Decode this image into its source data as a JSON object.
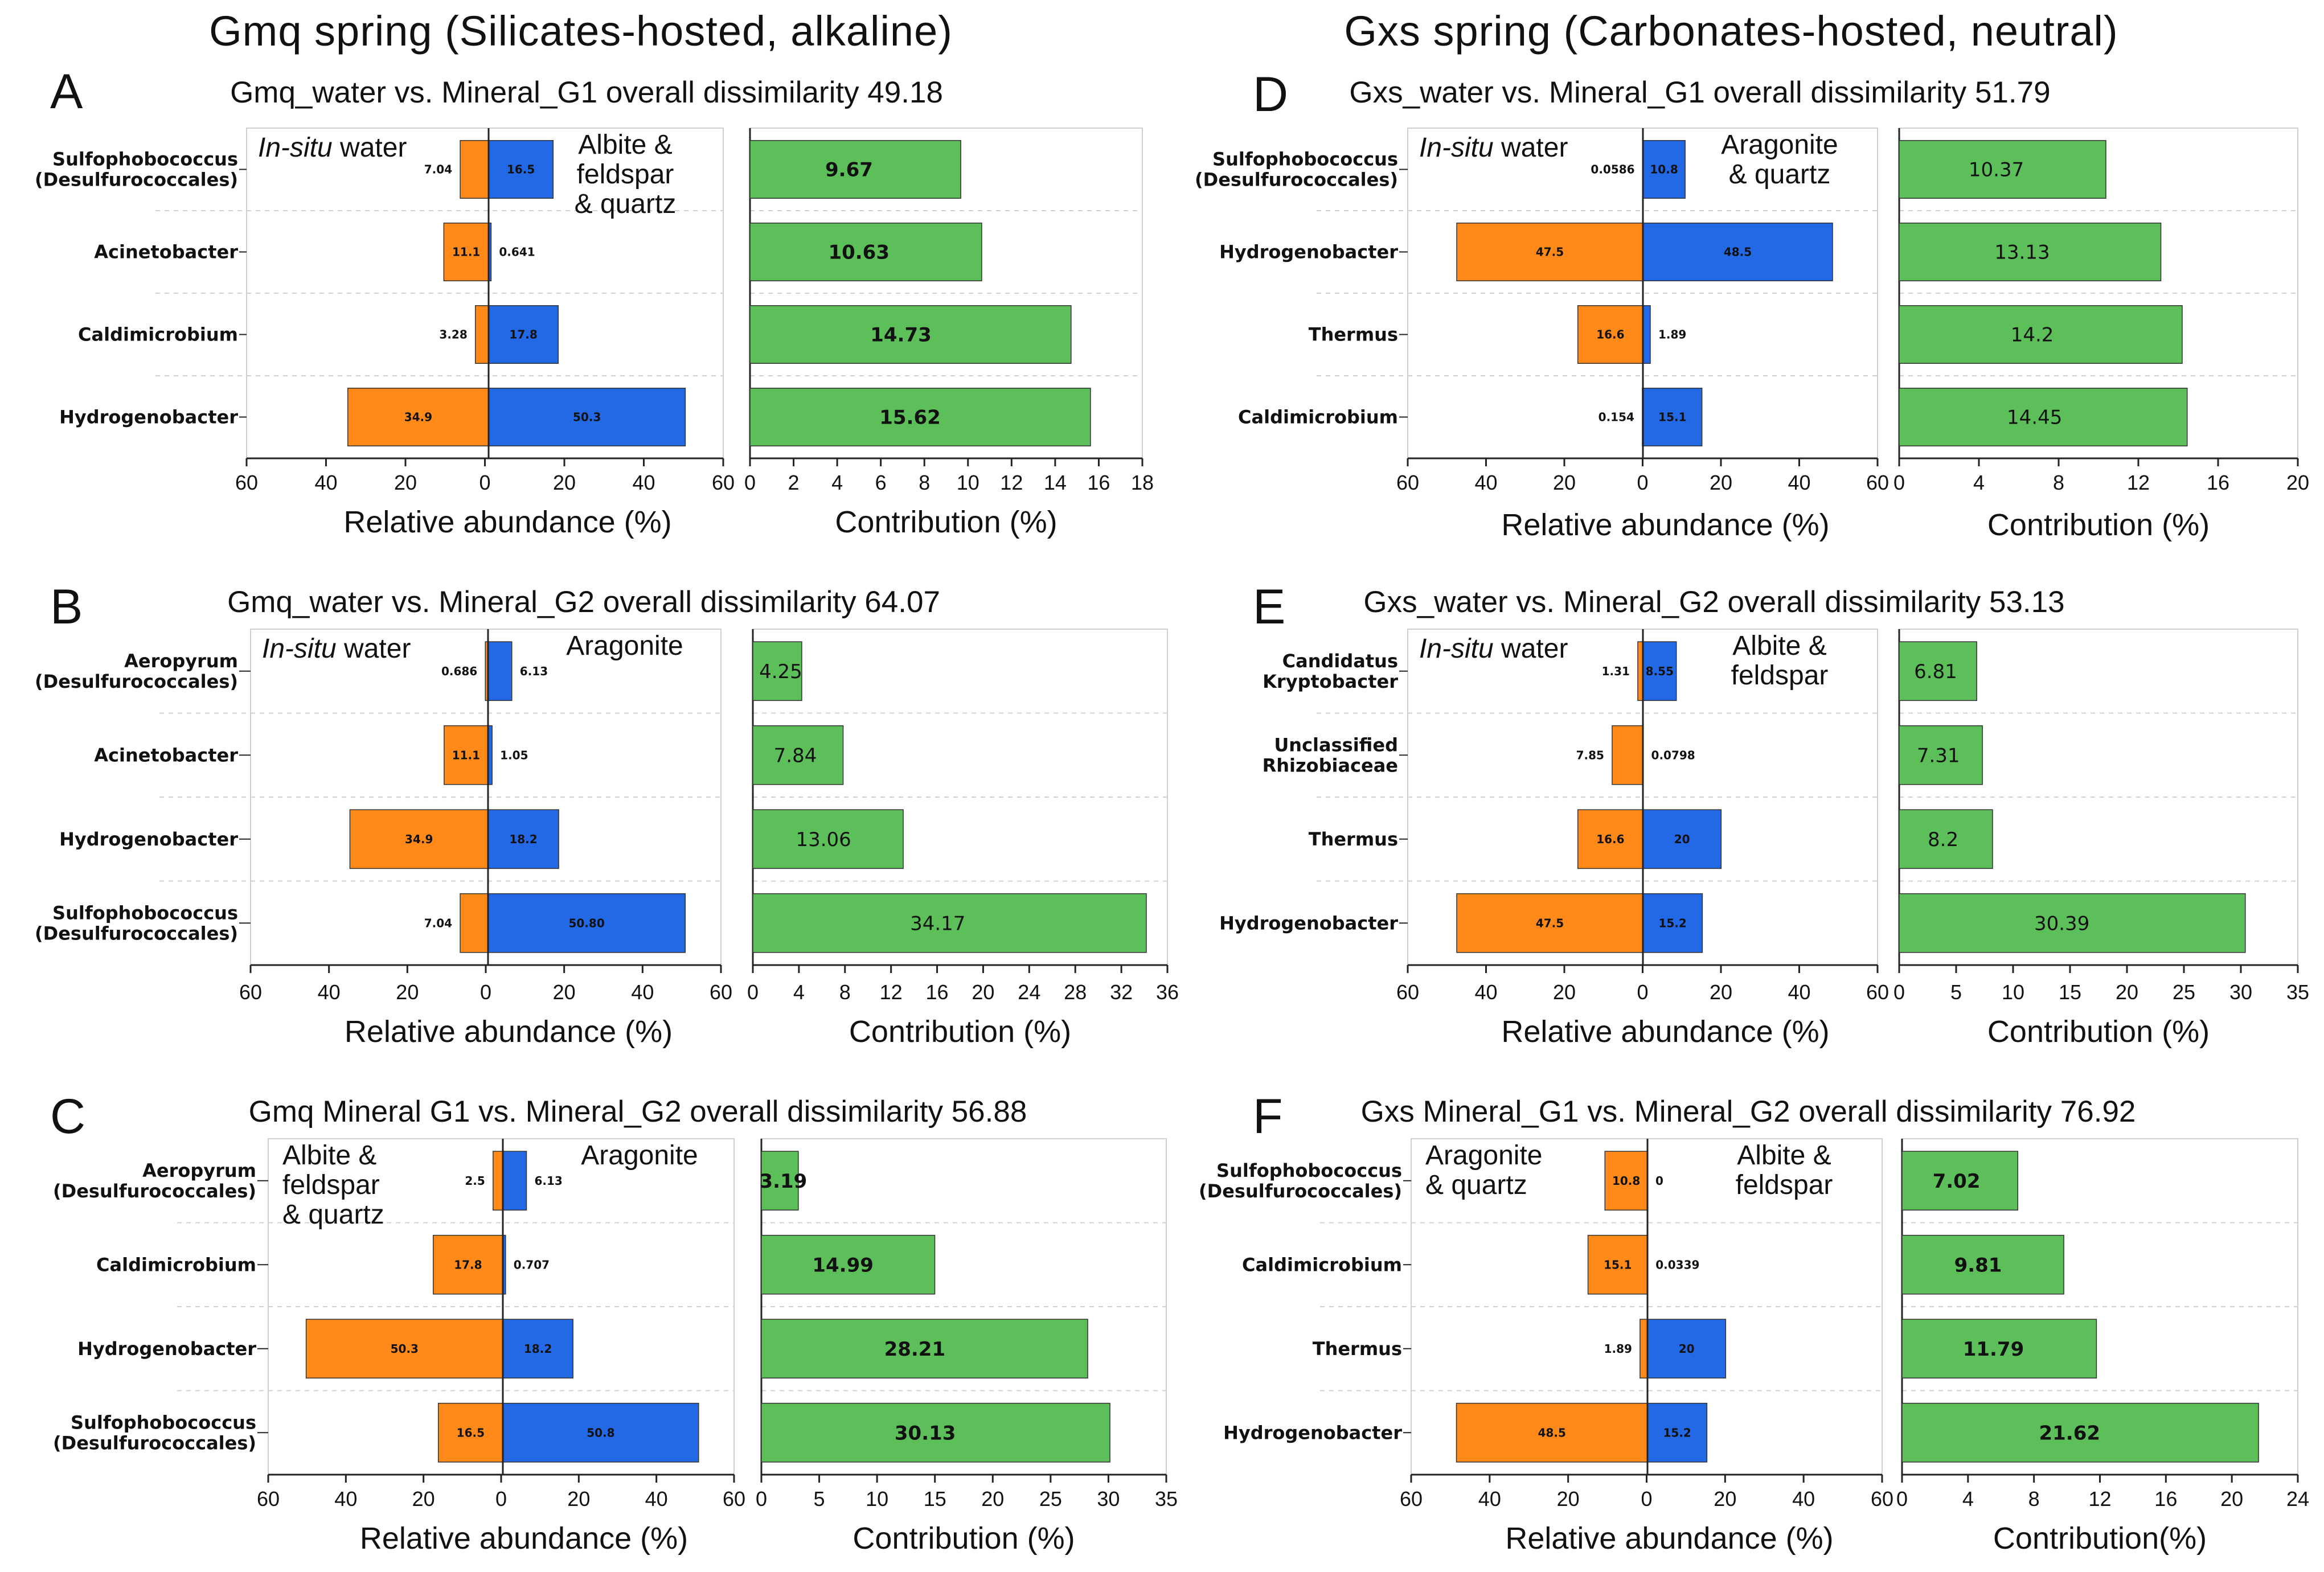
{
  "section_left": "Gmq spring (Silicates-hosted, alkaline)",
  "section_right": "Gxs spring (Carbonates-hosted, neutral)",
  "colors": {
    "left_bar": "#ff8a1a",
    "right_bar": "#2369e6",
    "contribution_bar": "#5cbf5a",
    "edge": "#333333"
  },
  "chart_data": [
    {
      "type": "bar",
      "letter": "A",
      "title": "Gmq_water vs. Mineral_G1 overall dissimilarity 49.18",
      "left_group": {
        "line1": "In-situ water",
        "italic_part": "In-situ",
        "rest": " water"
      },
      "right_group": [
        "Albite &",
        "feldspar",
        "& quartz"
      ],
      "left_group_lines": [],
      "categories": [
        [
          "Sulfophobococcus",
          "(Desulfurococcales)"
        ],
        [
          "Acinetobacter"
        ],
        [
          "Caldimicrobium"
        ],
        [
          "Hydrogenobacter"
        ]
      ],
      "left_values": [
        7.04,
        11.1,
        3.28,
        34.9
      ],
      "left_labels": [
        "7.04",
        "11.1",
        "3.28",
        "34.9"
      ],
      "right_values": [
        16.5,
        0.641,
        17.8,
        50.3
      ],
      "right_labels": [
        "16.5",
        "0.641",
        "17.8",
        "50.3"
      ],
      "contribution": [
        9.67,
        10.63,
        14.73,
        15.62
      ],
      "contribution_labels": [
        "9.67",
        "10.63",
        "14.73",
        "15.62"
      ],
      "contribution_bold": true,
      "abundance_range": [
        60,
        60
      ],
      "abundance_ticks": [
        "60",
        "40",
        "20",
        "0",
        "20",
        "40",
        "60"
      ],
      "contribution_max": 18,
      "contribution_ticks": [
        "0",
        "2",
        "4",
        "6",
        "8",
        "10",
        "12",
        "14",
        "16",
        "18"
      ],
      "xlabel_left": "Relative abundance (%)",
      "xlabel_right": "Contribution (%)"
    },
    {
      "type": "bar",
      "letter": "B",
      "title": "Gmq_water vs. Mineral_G2 overall dissimilarity 64.07",
      "left_group": {
        "italic_part": "In-situ",
        "rest": " water"
      },
      "right_group": [
        "Aragonite"
      ],
      "left_group_lines": [],
      "categories": [
        [
          "Aeropyrum",
          "(Desulfurococcales)"
        ],
        [
          "Acinetobacter"
        ],
        [
          "Hydrogenobacter"
        ],
        [
          "Sulfophobococcus",
          "(Desulfurococcales)"
        ]
      ],
      "left_values": [
        0.686,
        11.1,
        34.9,
        7.04
      ],
      "left_labels": [
        "0.686",
        "11.1",
        "34.9",
        "7.04"
      ],
      "right_values": [
        6.13,
        1.05,
        18.2,
        50.8
      ],
      "right_labels": [
        "6.13",
        "1.05",
        "18.2",
        "50.80"
      ],
      "contribution": [
        4.25,
        7.84,
        13.06,
        34.17
      ],
      "contribution_labels": [
        "4.25",
        "7.84",
        "13.06",
        "34.17"
      ],
      "contribution_bold": false,
      "abundance_range": [
        60,
        60
      ],
      "abundance_ticks": [
        "60",
        "40",
        "20",
        "0",
        "20",
        "40",
        "60"
      ],
      "contribution_max": 36,
      "contribution_ticks": [
        "0",
        "4",
        "8",
        "12",
        "16",
        "20",
        "24",
        "28",
        "32",
        "36"
      ],
      "xlabel_left": "Relative abundance (%)",
      "xlabel_right": "Contribution (%)"
    },
    {
      "type": "bar",
      "letter": "C",
      "title": "Gmq Mineral G1 vs. Mineral_G2 overall dissimilarity 56.88",
      "left_group": null,
      "left_group_lines": [
        "Albite &",
        "feldspar",
        "& quartz"
      ],
      "right_group": [
        "Aragonite"
      ],
      "categories": [
        [
          "Aeropyrum",
          "(Desulfurococcales)"
        ],
        [
          "Caldimicrobium"
        ],
        [
          "Hydrogenobacter"
        ],
        [
          "Sulfophobococcus",
          "(Desulfurococcales)"
        ]
      ],
      "left_values": [
        2.5,
        17.8,
        50.3,
        16.5
      ],
      "left_labels": [
        "2.5",
        "17.8",
        "50.3",
        "16.5"
      ],
      "right_values": [
        6.13,
        0.707,
        18.2,
        50.8
      ],
      "right_labels": [
        "6.13",
        "0.707",
        "18.2",
        "50.8"
      ],
      "contribution": [
        3.19,
        14.99,
        28.21,
        30.13
      ],
      "contribution_labels": [
        "3.19",
        "14.99",
        "28.21",
        "30.13"
      ],
      "contribution_bold": true,
      "abundance_range": [
        60,
        60
      ],
      "abundance_ticks": [
        "60",
        "40",
        "20",
        "0",
        "20",
        "40",
        "60"
      ],
      "contribution_max": 35,
      "contribution_ticks": [
        "0",
        "5",
        "10",
        "15",
        "20",
        "25",
        "30",
        "35"
      ],
      "xlabel_left": "Relative abundance (%)",
      "xlabel_right": "Contribution (%)"
    },
    {
      "type": "bar",
      "letter": "D",
      "title": "Gxs_water vs. Mineral_G1 overall dissimilarity 51.79",
      "left_group": {
        "italic_part": "In-situ",
        "rest": " water"
      },
      "right_group": [
        "Aragonite",
        "& quartz"
      ],
      "left_group_lines": [],
      "categories": [
        [
          "Sulfophobococcus",
          "(Desulfurococcales)"
        ],
        [
          "Hydrogenobacter"
        ],
        [
          "Thermus"
        ],
        [
          "Caldimicrobium"
        ]
      ],
      "left_values": [
        0.0586,
        47.5,
        16.6,
        0.154
      ],
      "left_labels": [
        "0.0586",
        "47.5",
        "16.6",
        "0.154"
      ],
      "right_values": [
        10.8,
        48.5,
        1.89,
        15.1
      ],
      "right_labels": [
        "10.8",
        "48.5",
        "1.89",
        "15.1"
      ],
      "contribution": [
        10.37,
        13.13,
        14.2,
        14.45
      ],
      "contribution_labels": [
        "10.37",
        "13.13",
        "14.2",
        "14.45"
      ],
      "contribution_bold": false,
      "abundance_range": [
        60,
        60
      ],
      "abundance_ticks": [
        "60",
        "40",
        "20",
        "0",
        "20",
        "40",
        "60"
      ],
      "contribution_max": 20,
      "contribution_ticks": [
        "0",
        "4",
        "8",
        "12",
        "16",
        "20"
      ],
      "xlabel_left": "Relative abundance (%)",
      "xlabel_right": "Contribution (%)"
    },
    {
      "type": "bar",
      "letter": "E",
      "title": "Gxs_water vs. Mineral_G2 overall dissimilarity 53.13",
      "left_group": {
        "italic_part": "In-situ",
        "rest": " water"
      },
      "right_group": [
        "Albite &",
        "feldspar"
      ],
      "left_group_lines": [],
      "categories": [
        [
          "Candidatus",
          "Kryptobacter"
        ],
        [
          "Unclassified",
          "Rhizobiaceae"
        ],
        [
          "Thermus"
        ],
        [
          "Hydrogenobacter"
        ]
      ],
      "left_values": [
        1.31,
        7.85,
        16.6,
        47.5
      ],
      "left_labels": [
        "1.31",
        "7.85",
        "16.6",
        "47.5"
      ],
      "right_values": [
        8.55,
        0.0798,
        20,
        15.2
      ],
      "right_labels": [
        "8.55",
        "0.0798",
        "20",
        "15.2"
      ],
      "contribution": [
        6.81,
        7.31,
        8.2,
        30.39
      ],
      "contribution_labels": [
        "6.81",
        "7.31",
        "8.2",
        "30.39"
      ],
      "contribution_bold": false,
      "abundance_range": [
        60,
        60
      ],
      "abundance_ticks": [
        "60",
        "40",
        "20",
        "0",
        "20",
        "40",
        "60"
      ],
      "contribution_max": 35,
      "contribution_ticks": [
        "0",
        "5",
        "10",
        "15",
        "20",
        "25",
        "30",
        "35"
      ],
      "xlabel_left": "Relative abundance (%)",
      "xlabel_right": "Contribution (%)"
    },
    {
      "type": "bar",
      "letter": "F",
      "title": "Gxs Mineral_G1 vs. Mineral_G2 overall dissimilarity 76.92",
      "left_group": null,
      "left_group_lines": [
        "Aragonite",
        "& quartz"
      ],
      "right_group": [
        "Albite &",
        "feldspar"
      ],
      "categories": [
        [
          "Sulfophobococcus",
          "(Desulfurococcales)"
        ],
        [
          "Caldimicrobium"
        ],
        [
          "Thermus"
        ],
        [
          "Hydrogenobacter"
        ]
      ],
      "left_values": [
        10.8,
        15.1,
        1.89,
        48.5
      ],
      "left_labels": [
        "10.8",
        "15.1",
        "1.89",
        "48.5"
      ],
      "right_values": [
        0,
        0.0339,
        20,
        15.2
      ],
      "right_labels": [
        "0",
        "0.0339",
        "20",
        "15.2"
      ],
      "contribution": [
        7.02,
        9.81,
        11.79,
        21.62
      ],
      "contribution_labels": [
        "7.02",
        "9.81",
        "11.79",
        "21.62"
      ],
      "contribution_bold": true,
      "abundance_range": [
        60,
        60
      ],
      "abundance_ticks": [
        "60",
        "40",
        "20",
        "0",
        "20",
        "40",
        "60"
      ],
      "contribution_max": 24,
      "contribution_ticks": [
        "0",
        "4",
        "8",
        "12",
        "16",
        "20",
        "24"
      ],
      "xlabel_left": "Relative abundance (%)",
      "xlabel_right": "Contribution(%)"
    }
  ]
}
